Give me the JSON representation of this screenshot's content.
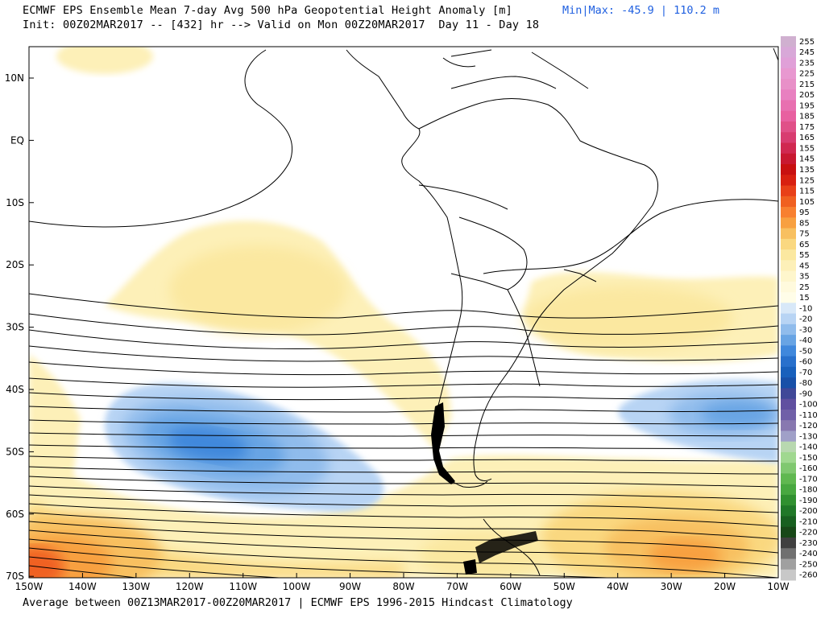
{
  "header": {
    "title": "ECMWF EPS Ensemble Mean 7-day Avg 500 hPa Geopotential Height Anomaly [m]",
    "minmax": "Min|Max: -45.9 | 110.2 m",
    "subtitle": "Init: 00Z02MAR2017 -- [432] hr --> Valid on Mon 00Z20MAR2017  Day 11 - Day 18"
  },
  "footer": "Average between 00Z13MAR2017-00Z20MAR2017 | ECMWF EPS 1996-2015 Hindcast Climatology",
  "map": {
    "lat_labels": [
      "10N",
      "EQ",
      "10S",
      "20S",
      "30S",
      "40S",
      "50S",
      "60S",
      "70S"
    ],
    "lon_labels": [
      "150W",
      "140W",
      "130W",
      "120W",
      "110W",
      "100W",
      "90W",
      "80W",
      "70W",
      "60W",
      "50W",
      "40W",
      "30W",
      "20W",
      "10W"
    ],
    "extremes": {
      "min": -45.9,
      "max": 110.2,
      "unit": "m"
    },
    "features": [
      "negative-anomaly-southeast-pacific",
      "negative-anomaly-south-atlantic",
      "positive-anomaly-southern-ocean",
      "height-contours"
    ]
  },
  "colorbar": {
    "labels": [
      "255",
      "245",
      "235",
      "225",
      "215",
      "205",
      "195",
      "185",
      "175",
      "165",
      "155",
      "145",
      "135",
      "125",
      "115",
      "105",
      "95",
      "85",
      "75",
      "65",
      "55",
      "45",
      "35",
      "25",
      "15",
      "-10",
      "-20",
      "-30",
      "-40",
      "-50",
      "-60",
      "-70",
      "-80",
      "-90",
      "-100",
      "-110",
      "-120",
      "-130",
      "-140",
      "-150",
      "-160",
      "-170",
      "-180",
      "-190",
      "-200",
      "-210",
      "-220",
      "-230",
      "-240",
      "-250",
      "-260"
    ],
    "colors": [
      "#d0b0d0",
      "#d8a8d8",
      "#e0a0d8",
      "#e898d0",
      "#e890c8",
      "#e880c0",
      "#e870b0",
      "#e860a0",
      "#e05088",
      "#d83c70",
      "#d02850",
      "#c81830",
      "#c81010",
      "#d82010",
      "#e84018",
      "#f06020",
      "#f88030",
      "#f8a040",
      "#f8c060",
      "#fad880",
      "#fbe8a0",
      "#fdf0b8",
      "#fef6cc",
      "#fffadd",
      "#fffde8",
      "#d8e8f8",
      "#b8d4f4",
      "#90bcec",
      "#68a4e4",
      "#4088dc",
      "#2870cc",
      "#1860bc",
      "#1850a8",
      "#404898",
      "#6050a0",
      "#7060a8",
      "#8878b0",
      "#a0a0c8",
      "#b8d8b0",
      "#a0d890",
      "#80c870",
      "#60b850",
      "#48a840",
      "#309030",
      "#207828",
      "#186020",
      "#184818",
      "#404040",
      "#707070",
      "#a0a0a0",
      "#c8c8c8"
    ]
  }
}
